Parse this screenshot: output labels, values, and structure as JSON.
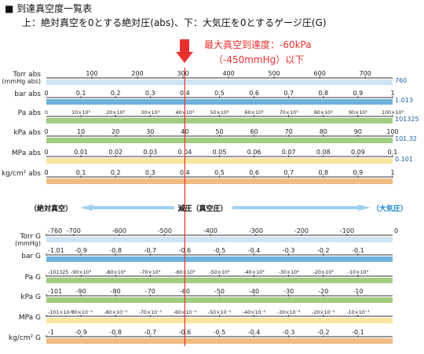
{
  "header": {
    "title": "■ 到達真空度一覧表",
    "subtitle": "上：絶対真空を0とする絶対圧(abs)、下：大気圧を0とするゲージ圧(G)"
  },
  "annotation": {
    "line1": "最大真空到達度：-60kPa",
    "line2": "（-450mmHg）以下",
    "color": "#e8312f"
  },
  "colors": {
    "blue": "#6fb2dc",
    "green": "#a3cc82",
    "yellow": "#f6e6a0",
    "orange": "#f0bc82",
    "light_blue": "#cde4f4",
    "arrow_blue": "#9fd0f0",
    "arrow_text": "#1f86c4"
  },
  "direction": {
    "left": "（絶対真空）",
    "center": "減圧（真空圧）",
    "right": "（大気圧）"
  },
  "abs_scales": [
    {
      "label": "Torr abs",
      "label2": "(mmHg abs)",
      "ticks": [
        "100",
        "200",
        "300",
        "400",
        "500",
        "600",
        "700"
      ],
      "leading": "",
      "end": "760",
      "color": "light_blue"
    },
    {
      "label": "bar abs",
      "label2": "",
      "ticks": [
        "0.1",
        "0.2",
        "0.3",
        "0.4",
        "0.5",
        "0.6",
        "0.7",
        "0.8",
        "0.9",
        "1"
      ],
      "leading": "0",
      "end": "1.013",
      "color": "blue"
    },
    {
      "label": "Pa abs",
      "label2": "",
      "ticks": [
        "10×10³",
        "20×10³",
        "30×10³",
        "40×10³",
        "50×10³",
        "60×10³",
        "70×10³",
        "80×10³",
        "90×10³",
        "100×10³"
      ],
      "leading": "0",
      "end": "101325",
      "color": "green"
    },
    {
      "label": "kPa abs",
      "label2": "",
      "ticks": [
        "10",
        "20",
        "30",
        "40",
        "50",
        "60",
        "70",
        "80",
        "90",
        "100"
      ],
      "leading": "0",
      "end": "101.32",
      "color": "green"
    },
    {
      "label": "MPa abs",
      "label2": "",
      "ticks": [
        "0.01",
        "0.02",
        "0.03",
        "0.04",
        "0.05",
        "0.06",
        "0.07",
        "0.08",
        "0.09",
        "0.1"
      ],
      "leading": "0",
      "end": "0.101",
      "color": "yellow"
    },
    {
      "label": "kg/cm² abs",
      "label2": "",
      "ticks": [
        "0.1",
        "0.2",
        "0.3",
        "0.4",
        "0.5",
        "0.6",
        "0.7",
        "0.8",
        "0.9",
        "1"
      ],
      "leading": "0",
      "end": "",
      "color": "orange"
    }
  ],
  "gauge_scales": [
    {
      "label": "Torr G",
      "label2": "(mmHg)",
      "ticks": [
        "-760",
        "-700",
        "-600",
        "-500",
        "-400",
        "-300",
        "-200",
        "-100"
      ],
      "end": "0",
      "color": "light_blue"
    },
    {
      "label": "bar G",
      "label2": "",
      "ticks": [
        "-1.01",
        "-0.9",
        "-0.8",
        "-0.7",
        "-0.6",
        "-0.5",
        "-0.4",
        "-0.3",
        "-0.2",
        "-0.1"
      ],
      "end": "",
      "color": "blue"
    },
    {
      "label": "Pa G",
      "label2": "",
      "ticks": [
        "-101325",
        "-90×10³",
        "-80×10³",
        "-70×10³",
        "-60×10³",
        "-50×10³",
        "-40×10³",
        "-30×10³",
        "-20×10³",
        "-10×10³"
      ],
      "end": "",
      "color": "green"
    },
    {
      "label": "kPa G",
      "label2": "",
      "ticks": [
        "-101",
        "-90",
        "-80",
        "-70",
        "-60",
        "-50",
        "-40",
        "-30",
        "-20",
        "-10"
      ],
      "end": "",
      "color": "green"
    },
    {
      "label": "MPa G",
      "label2": "",
      "ticks": [
        "-101×10⁻³",
        "-90×10⁻³",
        "-80×10⁻³",
        "-70×10⁻³",
        "-60×10⁻³",
        "-50×10⁻³",
        "-40×10⁻³",
        "-30×10⁻³",
        "-20×10⁻³",
        "-10×10⁻³"
      ],
      "end": "",
      "color": "yellow"
    },
    {
      "label": "kg/cm² G",
      "label2": "",
      "ticks": [
        "-1",
        "-0.9",
        "-0.8",
        "-0.7",
        "-0.6",
        "-0.5",
        "-0.4",
        "-0.3",
        "-0.2",
        "-0.1"
      ],
      "end": "",
      "color": "orange"
    }
  ]
}
